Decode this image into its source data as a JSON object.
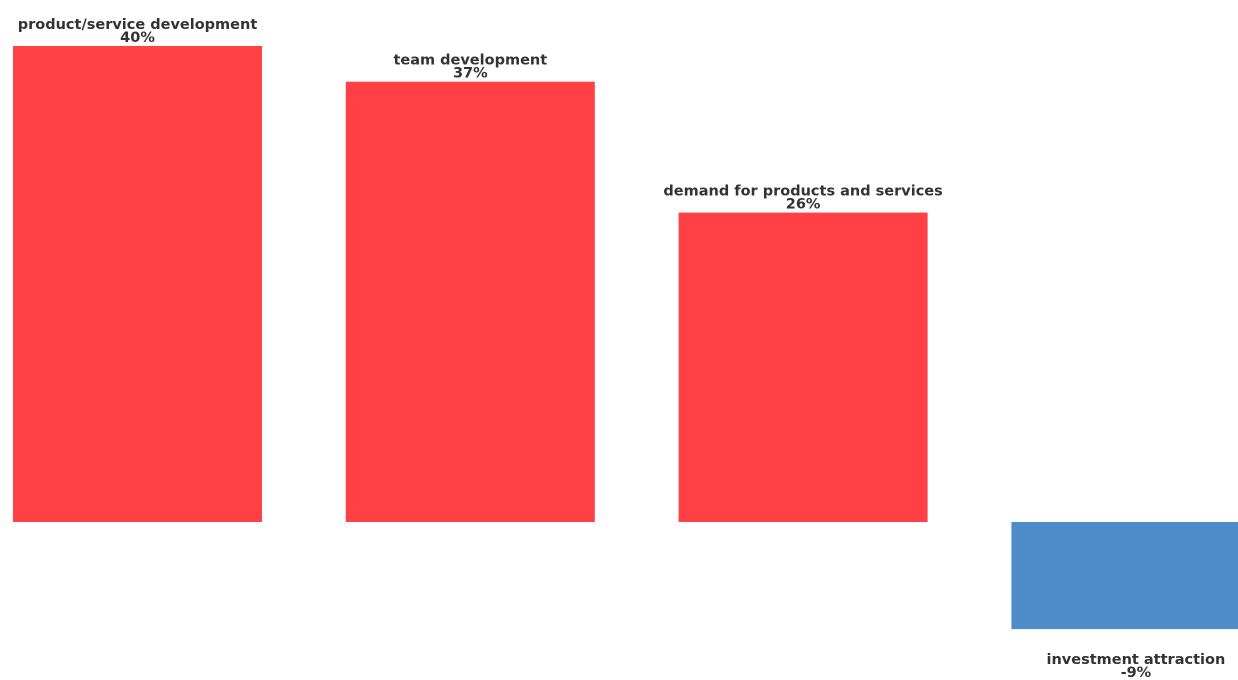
{
  "chart_data": {
    "type": "bar",
    "categories": [
      "product/service development",
      "team development",
      "demand for products and services",
      "investment attraction"
    ],
    "values": [
      40,
      37,
      26,
      -9
    ],
    "value_labels": [
      "40%",
      "37%",
      "26%",
      "-9%"
    ],
    "unit": "%",
    "ylim": [
      -9,
      40
    ],
    "grid": false,
    "legend": "none",
    "colors": {
      "positive": "#ff4146",
      "negative": "#4f8ac9",
      "label": "#333333"
    }
  }
}
